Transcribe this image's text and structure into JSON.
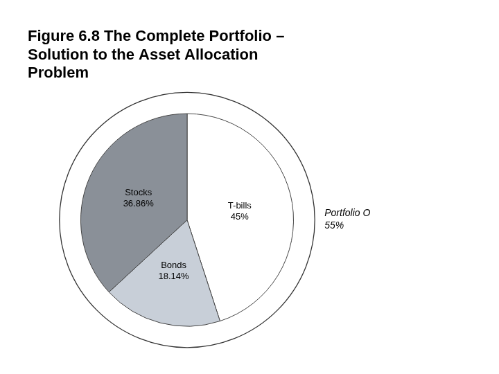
{
  "chart_data": {
    "type": "pie",
    "title": [
      "Figure 6.8 The Complete Portfolio –",
      "Solution to the Asset Allocation",
      "Problem"
    ],
    "categories": [
      "T-bills",
      "Bonds",
      "Stocks"
    ],
    "values": [
      45.0,
      18.14,
      36.86
    ],
    "colors": [
      "#ffffff",
      "#c8cfd8",
      "#8a9098"
    ],
    "data_labels": true,
    "value_labels": [
      "45%",
      "18.14%",
      "36.86%"
    ],
    "annotation": "Portfolio O\n55%",
    "legend": false
  }
}
